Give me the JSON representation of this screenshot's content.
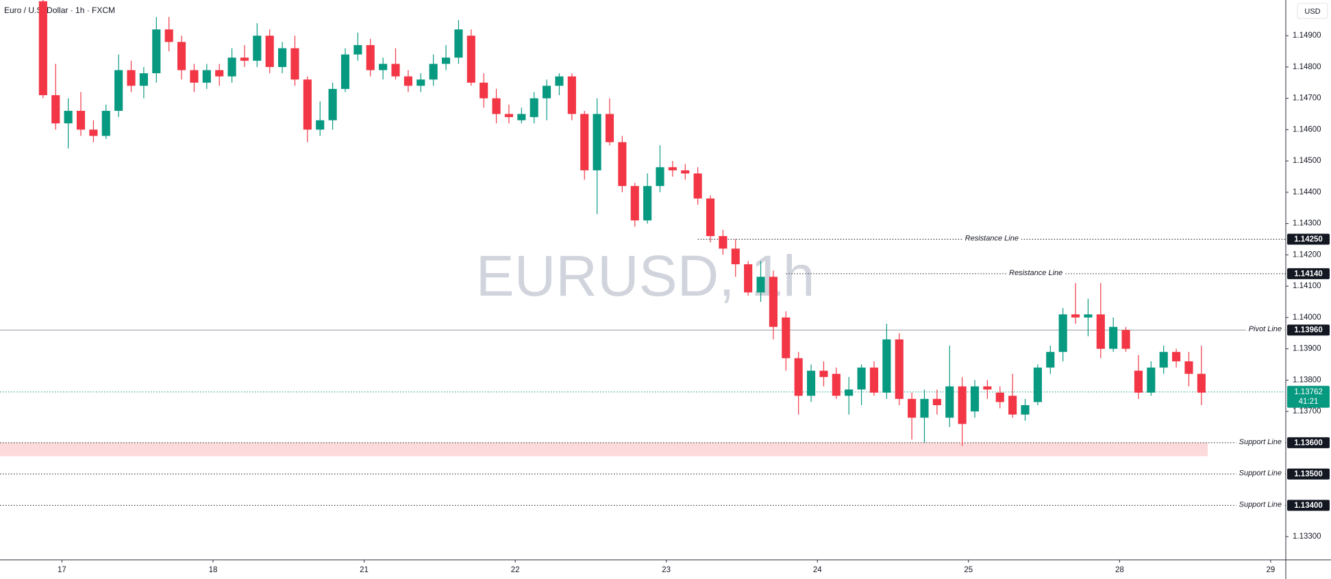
{
  "chart_data": {
    "type": "candlestick",
    "title": "Euro / U.S. Dollar · 1h · FXCM",
    "watermark": "EURUSD, 1h",
    "currency": "USD",
    "up_color": "#089981",
    "down_color": "#f23645",
    "x": [
      -3,
      -1,
      1,
      3,
      5,
      7,
      9,
      11,
      13,
      15,
      17,
      19,
      21,
      23,
      25,
      27,
      29,
      31,
      33,
      35,
      37,
      39,
      41,
      43,
      45,
      47,
      49,
      51,
      53,
      55,
      57,
      59,
      61,
      63,
      65,
      67,
      69,
      71,
      73,
      75,
      77,
      79,
      81,
      83,
      85,
      87,
      89,
      91,
      93,
      95,
      97,
      99,
      101,
      103,
      105,
      107,
      109,
      111,
      113,
      115,
      117,
      119,
      121,
      123,
      125,
      127,
      129,
      131,
      133,
      135,
      137,
      139,
      141,
      143,
      145,
      147,
      149,
      151,
      153,
      155,
      157,
      159,
      161,
      163,
      165,
      167,
      169,
      171,
      173,
      175,
      177,
      179,
      181
    ],
    "open": [
      1.1501,
      1.1471,
      1.1462,
      1.1466,
      1.146,
      1.1458,
      1.1466,
      1.1479,
      1.1474,
      1.1478,
      1.1492,
      1.1488,
      1.1479,
      1.1475,
      1.1479,
      1.1477,
      1.1483,
      1.1482,
      1.149,
      1.148,
      1.1486,
      1.1476,
      1.146,
      1.1463,
      1.1473,
      1.1484,
      1.1487,
      1.1479,
      1.1481,
      1.1477,
      1.1474,
      1.1476,
      1.1481,
      1.1483,
      1.149,
      1.1475,
      1.147,
      1.1465,
      1.1463,
      1.1464,
      1.147,
      1.1474,
      1.1477,
      1.1465,
      1.1447,
      1.1465,
      1.1456,
      1.1442,
      1.1431,
      1.1442,
      1.1448,
      1.1447,
      1.1446,
      1.1438,
      1.1426,
      1.1422,
      1.1417,
      1.1408,
      1.1413,
      1.14,
      1.1387,
      1.1375,
      1.1383,
      1.1382,
      1.1375,
      1.1377,
      1.1384,
      1.1376,
      1.1393,
      1.1374,
      1.1368,
      1.1374,
      1.1368,
      1.1378,
      1.137,
      1.1378,
      1.1376,
      1.1375,
      1.1369,
      1.1373,
      1.1384,
      1.1389,
      1.1401,
      1.14,
      1.1401,
      1.139,
      1.1396,
      1.1383,
      1.1376,
      1.1384,
      1.1389,
      1.1386,
      1.1382
    ],
    "high": [
      1.1502,
      1.1481,
      1.147,
      1.1472,
      1.1463,
      1.1468,
      1.1484,
      1.1482,
      1.148,
      1.1496,
      1.1496,
      1.149,
      1.1481,
      1.1481,
      1.1481,
      1.1486,
      1.1487,
      1.1494,
      1.1492,
      1.1488,
      1.149,
      1.1477,
      1.1469,
      1.1475,
      1.1486,
      1.1491,
      1.1489,
      1.1483,
      1.1486,
      1.1479,
      1.1478,
      1.1484,
      1.1487,
      1.1495,
      1.1492,
      1.1478,
      1.1473,
      1.1468,
      1.1467,
      1.1472,
      1.1476,
      1.1478,
      1.1478,
      1.1466,
      1.147,
      1.147,
      1.1458,
      1.1443,
      1.1446,
      1.1455,
      1.145,
      1.1449,
      1.1448,
      1.1439,
      1.1428,
      1.1425,
      1.1418,
      1.1418,
      1.1415,
      1.1402,
      1.1389,
      1.1385,
      1.1386,
      1.1384,
      1.1381,
      1.1385,
      1.1386,
      1.1398,
      1.1395,
      1.1376,
      1.1377,
      1.1377,
      1.1391,
      1.1381,
      1.138,
      1.138,
      1.1378,
      1.1382,
      1.1374,
      1.1385,
      1.1391,
      1.1403,
      1.1411,
      1.1406,
      1.1411,
      1.14,
      1.1397,
      1.1388,
      1.1386,
      1.1391,
      1.139,
      1.1389,
      1.1391
    ],
    "low": [
      1.147,
      1.146,
      1.1454,
      1.1458,
      1.1456,
      1.1457,
      1.1464,
      1.1472,
      1.147,
      1.1475,
      1.1485,
      1.1476,
      1.1472,
      1.1473,
      1.1474,
      1.1475,
      1.148,
      1.148,
      1.1478,
      1.1478,
      1.1474,
      1.1456,
      1.1458,
      1.146,
      1.1472,
      1.1482,
      1.1477,
      1.1476,
      1.1476,
      1.1472,
      1.1472,
      1.1474,
      1.1479,
      1.1481,
      1.1474,
      1.1467,
      1.1462,
      1.1462,
      1.1462,
      1.1462,
      1.1463,
      1.1471,
      1.1463,
      1.1444,
      1.1433,
      1.1455,
      1.144,
      1.1429,
      1.143,
      1.144,
      1.1445,
      1.1444,
      1.1436,
      1.1424,
      1.142,
      1.1413,
      1.1407,
      1.1405,
      1.1393,
      1.1383,
      1.1369,
      1.1373,
      1.1378,
      1.1374,
      1.1369,
      1.1372,
      1.1375,
      1.1374,
      1.1372,
      1.1361,
      1.136,
      1.1369,
      1.1365,
      1.1359,
      1.1368,
      1.1374,
      1.1371,
      1.1368,
      1.1367,
      1.1372,
      1.1382,
      1.1386,
      1.1398,
      1.1394,
      1.1387,
      1.1389,
      1.1389,
      1.1374,
      1.1375,
      1.1382,
      1.1384,
      1.1378,
      1.1372
    ],
    "close": [
      1.1471,
      1.1462,
      1.1466,
      1.146,
      1.1458,
      1.1466,
      1.1479,
      1.1474,
      1.1478,
      1.1492,
      1.1488,
      1.1479,
      1.1475,
      1.1479,
      1.1477,
      1.1483,
      1.1482,
      1.149,
      1.148,
      1.1486,
      1.1476,
      1.146,
      1.1463,
      1.1473,
      1.1484,
      1.1487,
      1.1479,
      1.1481,
      1.1477,
      1.1474,
      1.1476,
      1.1481,
      1.1483,
      1.1492,
      1.1475,
      1.147,
      1.1465,
      1.1464,
      1.1465,
      1.147,
      1.1474,
      1.1477,
      1.1465,
      1.1447,
      1.1465,
      1.1456,
      1.1442,
      1.1431,
      1.1442,
      1.1448,
      1.1447,
      1.1446,
      1.1438,
      1.1426,
      1.1422,
      1.1417,
      1.1408,
      1.1413,
      1.1397,
      1.1387,
      1.1375,
      1.1383,
      1.1381,
      1.1375,
      1.1377,
      1.1384,
      1.1376,
      1.1393,
      1.1374,
      1.1368,
      1.1374,
      1.1372,
      1.1378,
      1.1366,
      1.1378,
      1.1377,
      1.1373,
      1.1369,
      1.1372,
      1.1384,
      1.1389,
      1.1401,
      1.14,
      1.1401,
      1.139,
      1.1397,
      1.139,
      1.1376,
      1.1384,
      1.1389,
      1.1386,
      1.1382,
      1.1376
    ],
    "xlim": [
      -9.84,
      194.4
    ],
    "ylim": [
      1.13226,
      1.15014
    ],
    "xticks": [
      {
        "value": 0,
        "label": "17"
      },
      {
        "value": 24,
        "label": "18"
      },
      {
        "value": 48,
        "label": "21"
      },
      {
        "value": 72,
        "label": "22"
      },
      {
        "value": 96,
        "label": "23"
      },
      {
        "value": 120,
        "label": "24"
      },
      {
        "value": 144,
        "label": "25"
      },
      {
        "value": 168,
        "label": "28"
      },
      {
        "value": 192,
        "label": "29"
      }
    ],
    "yticks": [
      {
        "value": 1.149,
        "label": "1.14900"
      },
      {
        "value": 1.148,
        "label": "1.14800"
      },
      {
        "value": 1.147,
        "label": "1.14700"
      },
      {
        "value": 1.146,
        "label": "1.14600"
      },
      {
        "value": 1.145,
        "label": "1.14500"
      },
      {
        "value": 1.144,
        "label": "1.14400"
      },
      {
        "value": 1.143,
        "label": "1.14300"
      },
      {
        "value": 1.142,
        "label": "1.14200"
      },
      {
        "value": 1.141,
        "label": "1.14100"
      },
      {
        "value": 1.14,
        "label": "1.14000"
      },
      {
        "value": 1.139,
        "label": "1.13900"
      },
      {
        "value": 1.138,
        "label": "1.13800"
      },
      {
        "value": 1.137,
        "label": "1.13700"
      },
      {
        "value": 1.133,
        "label": "1.13300"
      }
    ],
    "levels": [
      {
        "name": "Resistance Line",
        "value": 1.1425,
        "label": "1.14250",
        "style": "dotted",
        "color": "#131722",
        "from": 101
      },
      {
        "name": "Resistance Line",
        "value": 1.1414,
        "label": "1.14140",
        "style": "dotted",
        "color": "#131722",
        "from": 115
      },
      {
        "name": "Pivot Line",
        "value": 1.1396,
        "label": "1.13960",
        "style": "solid",
        "color": "#9598a1"
      },
      {
        "name": "Support Line",
        "value": 1.136,
        "label": "1.13600",
        "style": "dotted",
        "color": "#131722"
      },
      {
        "name": "Support Line",
        "value": 1.135,
        "label": "1.13500",
        "style": "dotted",
        "color": "#131722"
      },
      {
        "name": "Support Line",
        "value": 1.134,
        "label": "1.13400",
        "style": "dotted",
        "color": "#131722"
      }
    ],
    "zone": {
      "from": 1.13557,
      "to": 1.136,
      "color": "#fcd9da"
    },
    "last_price": {
      "value": 1.13762,
      "label": "1.13762",
      "countdown": "41:21",
      "color": "#089981"
    }
  }
}
